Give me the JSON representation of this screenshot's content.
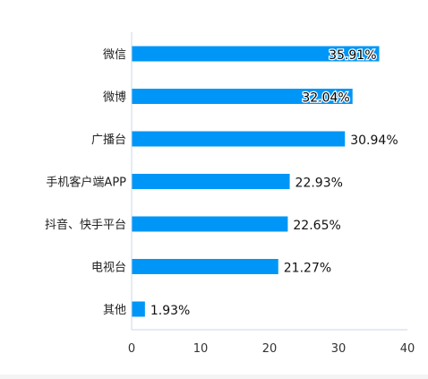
{
  "chart_data": {
    "type": "bar",
    "orientation": "horizontal",
    "categories": [
      "微信",
      "微博",
      "广播台",
      "手机客户端APP",
      "抖音、快手平台",
      "电视台",
      "其他"
    ],
    "values": [
      35.91,
      32.04,
      30.94,
      22.93,
      22.65,
      21.27,
      1.93
    ],
    "value_labels": [
      "35.91%",
      "32.04%",
      "30.94%",
      "22.93%",
      "22.65%",
      "21.27%",
      "1.93%"
    ],
    "xlim": [
      0,
      40
    ],
    "x_ticks": [
      "0",
      "10",
      "20",
      "30",
      "40"
    ],
    "grid": false,
    "bar_color": "#0096f7",
    "axis_color": "#c8d7e8"
  }
}
